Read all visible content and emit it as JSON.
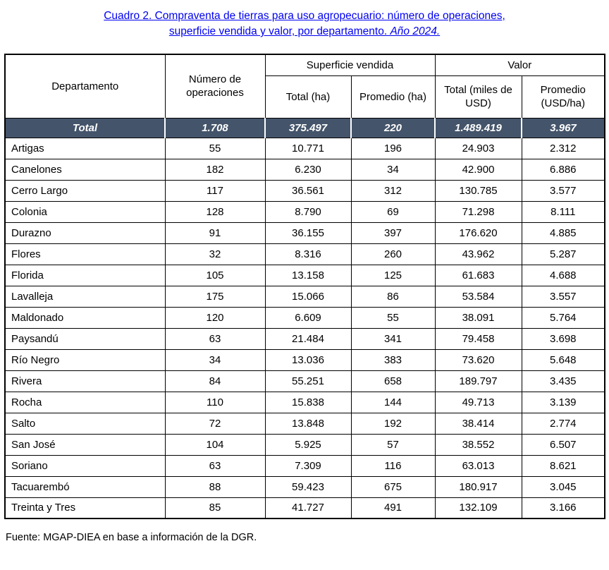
{
  "title": {
    "line1": "Cuadro 2. Compraventa de tierras para uso agropecuario: número de operaciones,",
    "line2": "superficie vendida y valor, por departamento. ",
    "line2_italic": "Año 2024."
  },
  "table": {
    "headers": {
      "departamento": "Departamento",
      "operaciones": "Número de operaciones",
      "superficie_vendida": "Superficie vendida",
      "valor": "Valor",
      "total_ha": "Total (ha)",
      "promedio_ha": "Promedio (ha)",
      "total_miles_usd": "Total (miles de USD)",
      "promedio_usd_ha": "Promedio (USD/ha)"
    },
    "total_row": {
      "label": "Total",
      "values": [
        "1.708",
        "375.497",
        "220",
        "1.489.419",
        "3.967"
      ]
    },
    "rows": [
      {
        "name": "Artigas",
        "values": [
          "55",
          "10.771",
          "196",
          "24.903",
          "2.312"
        ]
      },
      {
        "name": "Canelones",
        "values": [
          "182",
          "6.230",
          "34",
          "42.900",
          "6.886"
        ]
      },
      {
        "name": "Cerro Largo",
        "values": [
          "117",
          "36.561",
          "312",
          "130.785",
          "3.577"
        ]
      },
      {
        "name": "Colonia",
        "values": [
          "128",
          "8.790",
          "69",
          "71.298",
          "8.111"
        ]
      },
      {
        "name": "Durazno",
        "values": [
          "91",
          "36.155",
          "397",
          "176.620",
          "4.885"
        ]
      },
      {
        "name": "Flores",
        "values": [
          "32",
          "8.316",
          "260",
          "43.962",
          "5.287"
        ]
      },
      {
        "name": "Florida",
        "values": [
          "105",
          "13.158",
          "125",
          "61.683",
          "4.688"
        ]
      },
      {
        "name": "Lavalleja",
        "values": [
          "175",
          "15.066",
          "86",
          "53.584",
          "3.557"
        ]
      },
      {
        "name": "Maldonado",
        "values": [
          "120",
          "6.609",
          "55",
          "38.091",
          "5.764"
        ]
      },
      {
        "name": "Paysandú",
        "values": [
          "63",
          "21.484",
          "341",
          "79.458",
          "3.698"
        ]
      },
      {
        "name": "Río Negro",
        "values": [
          "34",
          "13.036",
          "383",
          "73.620",
          "5.648"
        ]
      },
      {
        "name": "Rivera",
        "values": [
          "84",
          "55.251",
          "658",
          "189.797",
          "3.435"
        ]
      },
      {
        "name": "Rocha",
        "values": [
          "110",
          "15.838",
          "144",
          "49.713",
          "3.139"
        ]
      },
      {
        "name": "Salto",
        "values": [
          "72",
          "13.848",
          "192",
          "38.414",
          "2.774"
        ]
      },
      {
        "name": "San José",
        "values": [
          "104",
          "5.925",
          "57",
          "38.552",
          "6.507"
        ]
      },
      {
        "name": "Soriano",
        "values": [
          "63",
          "7.309",
          "116",
          "63.013",
          "8.621"
        ]
      },
      {
        "name": "Tacuarembó",
        "values": [
          "88",
          "59.423",
          "675",
          "180.917",
          "3.045"
        ]
      },
      {
        "name": "Treinta y Tres",
        "values": [
          "85",
          "41.727",
          "491",
          "132.109",
          "3.166"
        ]
      }
    ]
  },
  "footer": {
    "source": "Fuente: MGAP-DIEA en base a información de la DGR."
  },
  "colors": {
    "title_blue": "#0000f0",
    "total_row_bg": "#44546a",
    "total_row_text": "#ffffff",
    "border": "#000000"
  }
}
